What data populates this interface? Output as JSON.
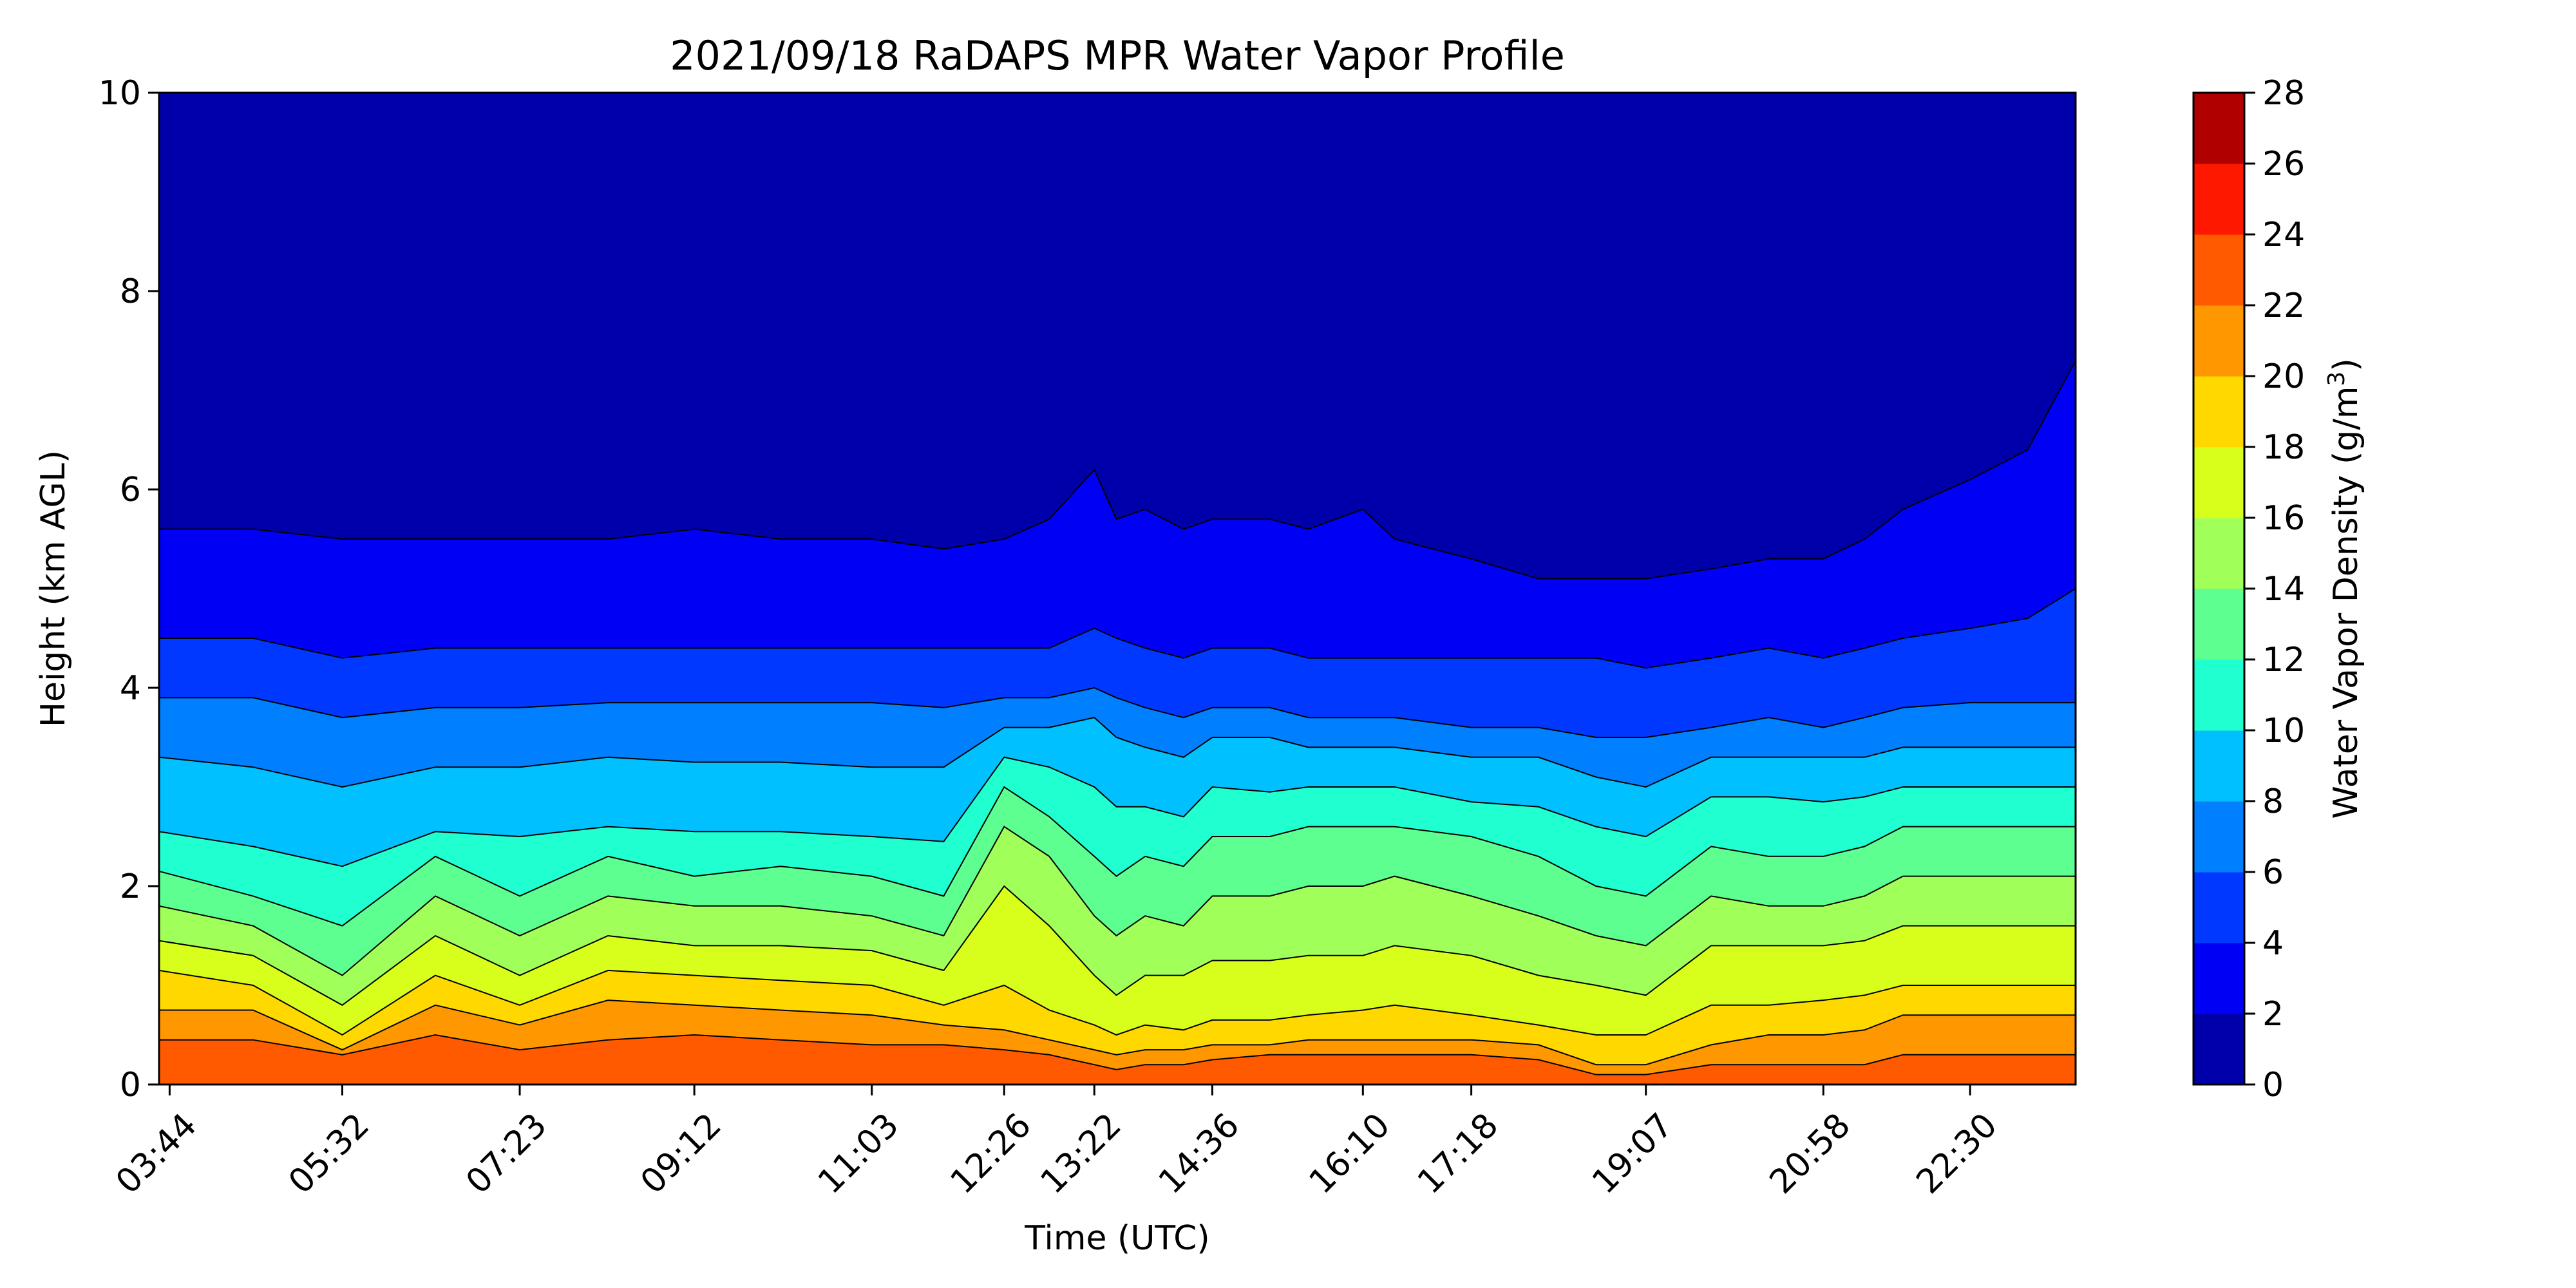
{
  "chart_data": {
    "type": "heatmap",
    "subtype": "filled-contour",
    "title": "2021/09/18 RaDAPS MPR Water Vapor Profile",
    "xlabel": "Time (UTC)",
    "ylabel": "Height (km AGL)",
    "colorbar_label_main": "Water Vapor Density (g/m",
    "colorbar_label_sup": "3",
    "colorbar_label_end": ")",
    "x_tick_labels": [
      "03:44",
      "05:32",
      "07:23",
      "09:12",
      "11:03",
      "12:26",
      "13:22",
      "14:36",
      "16:10",
      "17:18",
      "19:07",
      "20:58",
      "22:30"
    ],
    "y_ticks": [
      0,
      2,
      4,
      6,
      8,
      10
    ],
    "y_tick_labels": [
      "0",
      "2",
      "4",
      "6",
      "8",
      "10"
    ],
    "ylim": [
      0,
      10
    ],
    "color_levels": [
      0,
      2,
      4,
      6,
      8,
      10,
      12,
      14,
      16,
      18,
      20,
      22,
      24,
      26,
      28
    ],
    "color_level_labels": [
      "0",
      "2",
      "4",
      "6",
      "8",
      "10",
      "12",
      "14",
      "16",
      "18",
      "20",
      "22",
      "24",
      "26",
      "28"
    ],
    "colors": [
      "#0000aa",
      "#0000f5",
      "#0038ff",
      "#0080ff",
      "#00c0ff",
      "#20ffd0",
      "#5cff90",
      "#a0ff58",
      "#d8ff1c",
      "#ffd800",
      "#ff9800",
      "#ff5a00",
      "#ff1800",
      "#b00000"
    ],
    "time_hours": [
      3.73,
      4.6,
      5.53,
      6.5,
      7.38,
      8.3,
      9.2,
      10.1,
      11.05,
      11.8,
      12.43,
      12.9,
      13.37,
      13.6,
      13.9,
      14.3,
      14.6,
      15.2,
      15.6,
      16.17,
      16.5,
      17.3,
      18.0,
      18.6,
      19.12,
      19.8,
      20.4,
      20.97,
      21.4,
      21.8,
      22.5,
      23.1,
      23.4
    ],
    "contour_boundary_heights_km": [
      [
        0.45,
        0.45,
        0.3,
        0.5,
        0.35,
        0.45,
        0.5,
        0.45,
        0.4,
        0.4,
        0.35,
        0.3,
        0.2,
        0.15,
        0.2,
        0.2,
        0.25,
        0.3,
        0.3,
        0.3,
        0.3,
        0.3,
        0.25,
        0.1,
        0.1,
        0.2,
        0.2,
        0.2,
        0.2,
        0.3,
        0.3,
        0.3,
        0.3
      ],
      [
        0.75,
        0.75,
        0.35,
        0.8,
        0.6,
        0.85,
        0.8,
        0.75,
        0.7,
        0.6,
        0.55,
        0.45,
        0.35,
        0.3,
        0.35,
        0.35,
        0.4,
        0.4,
        0.45,
        0.45,
        0.45,
        0.45,
        0.4,
        0.2,
        0.2,
        0.4,
        0.5,
        0.5,
        0.55,
        0.7,
        0.7,
        0.7,
        0.7
      ],
      [
        1.15,
        1.0,
        0.5,
        1.1,
        0.8,
        1.15,
        1.1,
        1.05,
        1.0,
        0.8,
        1.0,
        0.75,
        0.6,
        0.5,
        0.6,
        0.55,
        0.65,
        0.65,
        0.7,
        0.75,
        0.8,
        0.7,
        0.6,
        0.5,
        0.5,
        0.8,
        0.8,
        0.85,
        0.9,
        1.0,
        1.0,
        1.0,
        1.0
      ],
      [
        1.45,
        1.3,
        0.8,
        1.5,
        1.1,
        1.5,
        1.4,
        1.4,
        1.35,
        1.15,
        2.0,
        1.6,
        1.1,
        0.9,
        1.1,
        1.1,
        1.25,
        1.25,
        1.3,
        1.3,
        1.4,
        1.3,
        1.1,
        1.0,
        0.9,
        1.4,
        1.4,
        1.4,
        1.45,
        1.6,
        1.6,
        1.6,
        1.6
      ],
      [
        1.8,
        1.6,
        1.1,
        1.9,
        1.5,
        1.9,
        1.8,
        1.8,
        1.7,
        1.5,
        2.6,
        2.3,
        1.7,
        1.5,
        1.7,
        1.6,
        1.9,
        1.9,
        2.0,
        2.0,
        2.1,
        1.9,
        1.7,
        1.5,
        1.4,
        1.9,
        1.8,
        1.8,
        1.9,
        2.1,
        2.1,
        2.1,
        2.1
      ],
      [
        2.15,
        1.9,
        1.6,
        2.3,
        1.9,
        2.3,
        2.1,
        2.2,
        2.1,
        1.9,
        3.0,
        2.7,
        2.3,
        2.1,
        2.3,
        2.2,
        2.5,
        2.5,
        2.6,
        2.6,
        2.6,
        2.5,
        2.3,
        2.0,
        1.9,
        2.4,
        2.3,
        2.3,
        2.4,
        2.6,
        2.6,
        2.6,
        2.6
      ],
      [
        2.55,
        2.4,
        2.2,
        2.55,
        2.5,
        2.6,
        2.55,
        2.55,
        2.5,
        2.45,
        3.3,
        3.2,
        3.0,
        2.8,
        2.8,
        2.7,
        3.0,
        2.95,
        3.0,
        3.0,
        3.0,
        2.85,
        2.8,
        2.6,
        2.5,
        2.9,
        2.9,
        2.85,
        2.9,
        3.0,
        3.0,
        3.0,
        3.0
      ],
      [
        3.3,
        3.2,
        3.0,
        3.2,
        3.2,
        3.3,
        3.25,
        3.25,
        3.2,
        3.2,
        3.6,
        3.6,
        3.7,
        3.5,
        3.4,
        3.3,
        3.5,
        3.5,
        3.4,
        3.4,
        3.4,
        3.3,
        3.3,
        3.1,
        3.0,
        3.3,
        3.3,
        3.3,
        3.3,
        3.4,
        3.4,
        3.4,
        3.4
      ],
      [
        3.9,
        3.9,
        3.7,
        3.8,
        3.8,
        3.85,
        3.85,
        3.85,
        3.85,
        3.8,
        3.9,
        3.9,
        4.0,
        3.9,
        3.8,
        3.7,
        3.8,
        3.8,
        3.7,
        3.7,
        3.7,
        3.6,
        3.6,
        3.5,
        3.5,
        3.6,
        3.7,
        3.6,
        3.7,
        3.8,
        3.85,
        3.85,
        3.85
      ],
      [
        4.5,
        4.5,
        4.3,
        4.4,
        4.4,
        4.4,
        4.4,
        4.4,
        4.4,
        4.4,
        4.4,
        4.4,
        4.6,
        4.5,
        4.4,
        4.3,
        4.4,
        4.4,
        4.3,
        4.3,
        4.3,
        4.3,
        4.3,
        4.3,
        4.2,
        4.3,
        4.4,
        4.3,
        4.4,
        4.5,
        4.6,
        4.7,
        5.0
      ],
      [
        5.6,
        5.6,
        5.5,
        5.5,
        5.5,
        5.5,
        5.6,
        5.5,
        5.5,
        5.4,
        5.5,
        5.7,
        6.2,
        5.7,
        5.8,
        5.6,
        5.7,
        5.7,
        5.6,
        5.8,
        5.5,
        5.3,
        5.1,
        5.1,
        5.1,
        5.2,
        5.3,
        5.3,
        5.5,
        5.8,
        6.1,
        6.4,
        7.3
      ]
    ]
  }
}
